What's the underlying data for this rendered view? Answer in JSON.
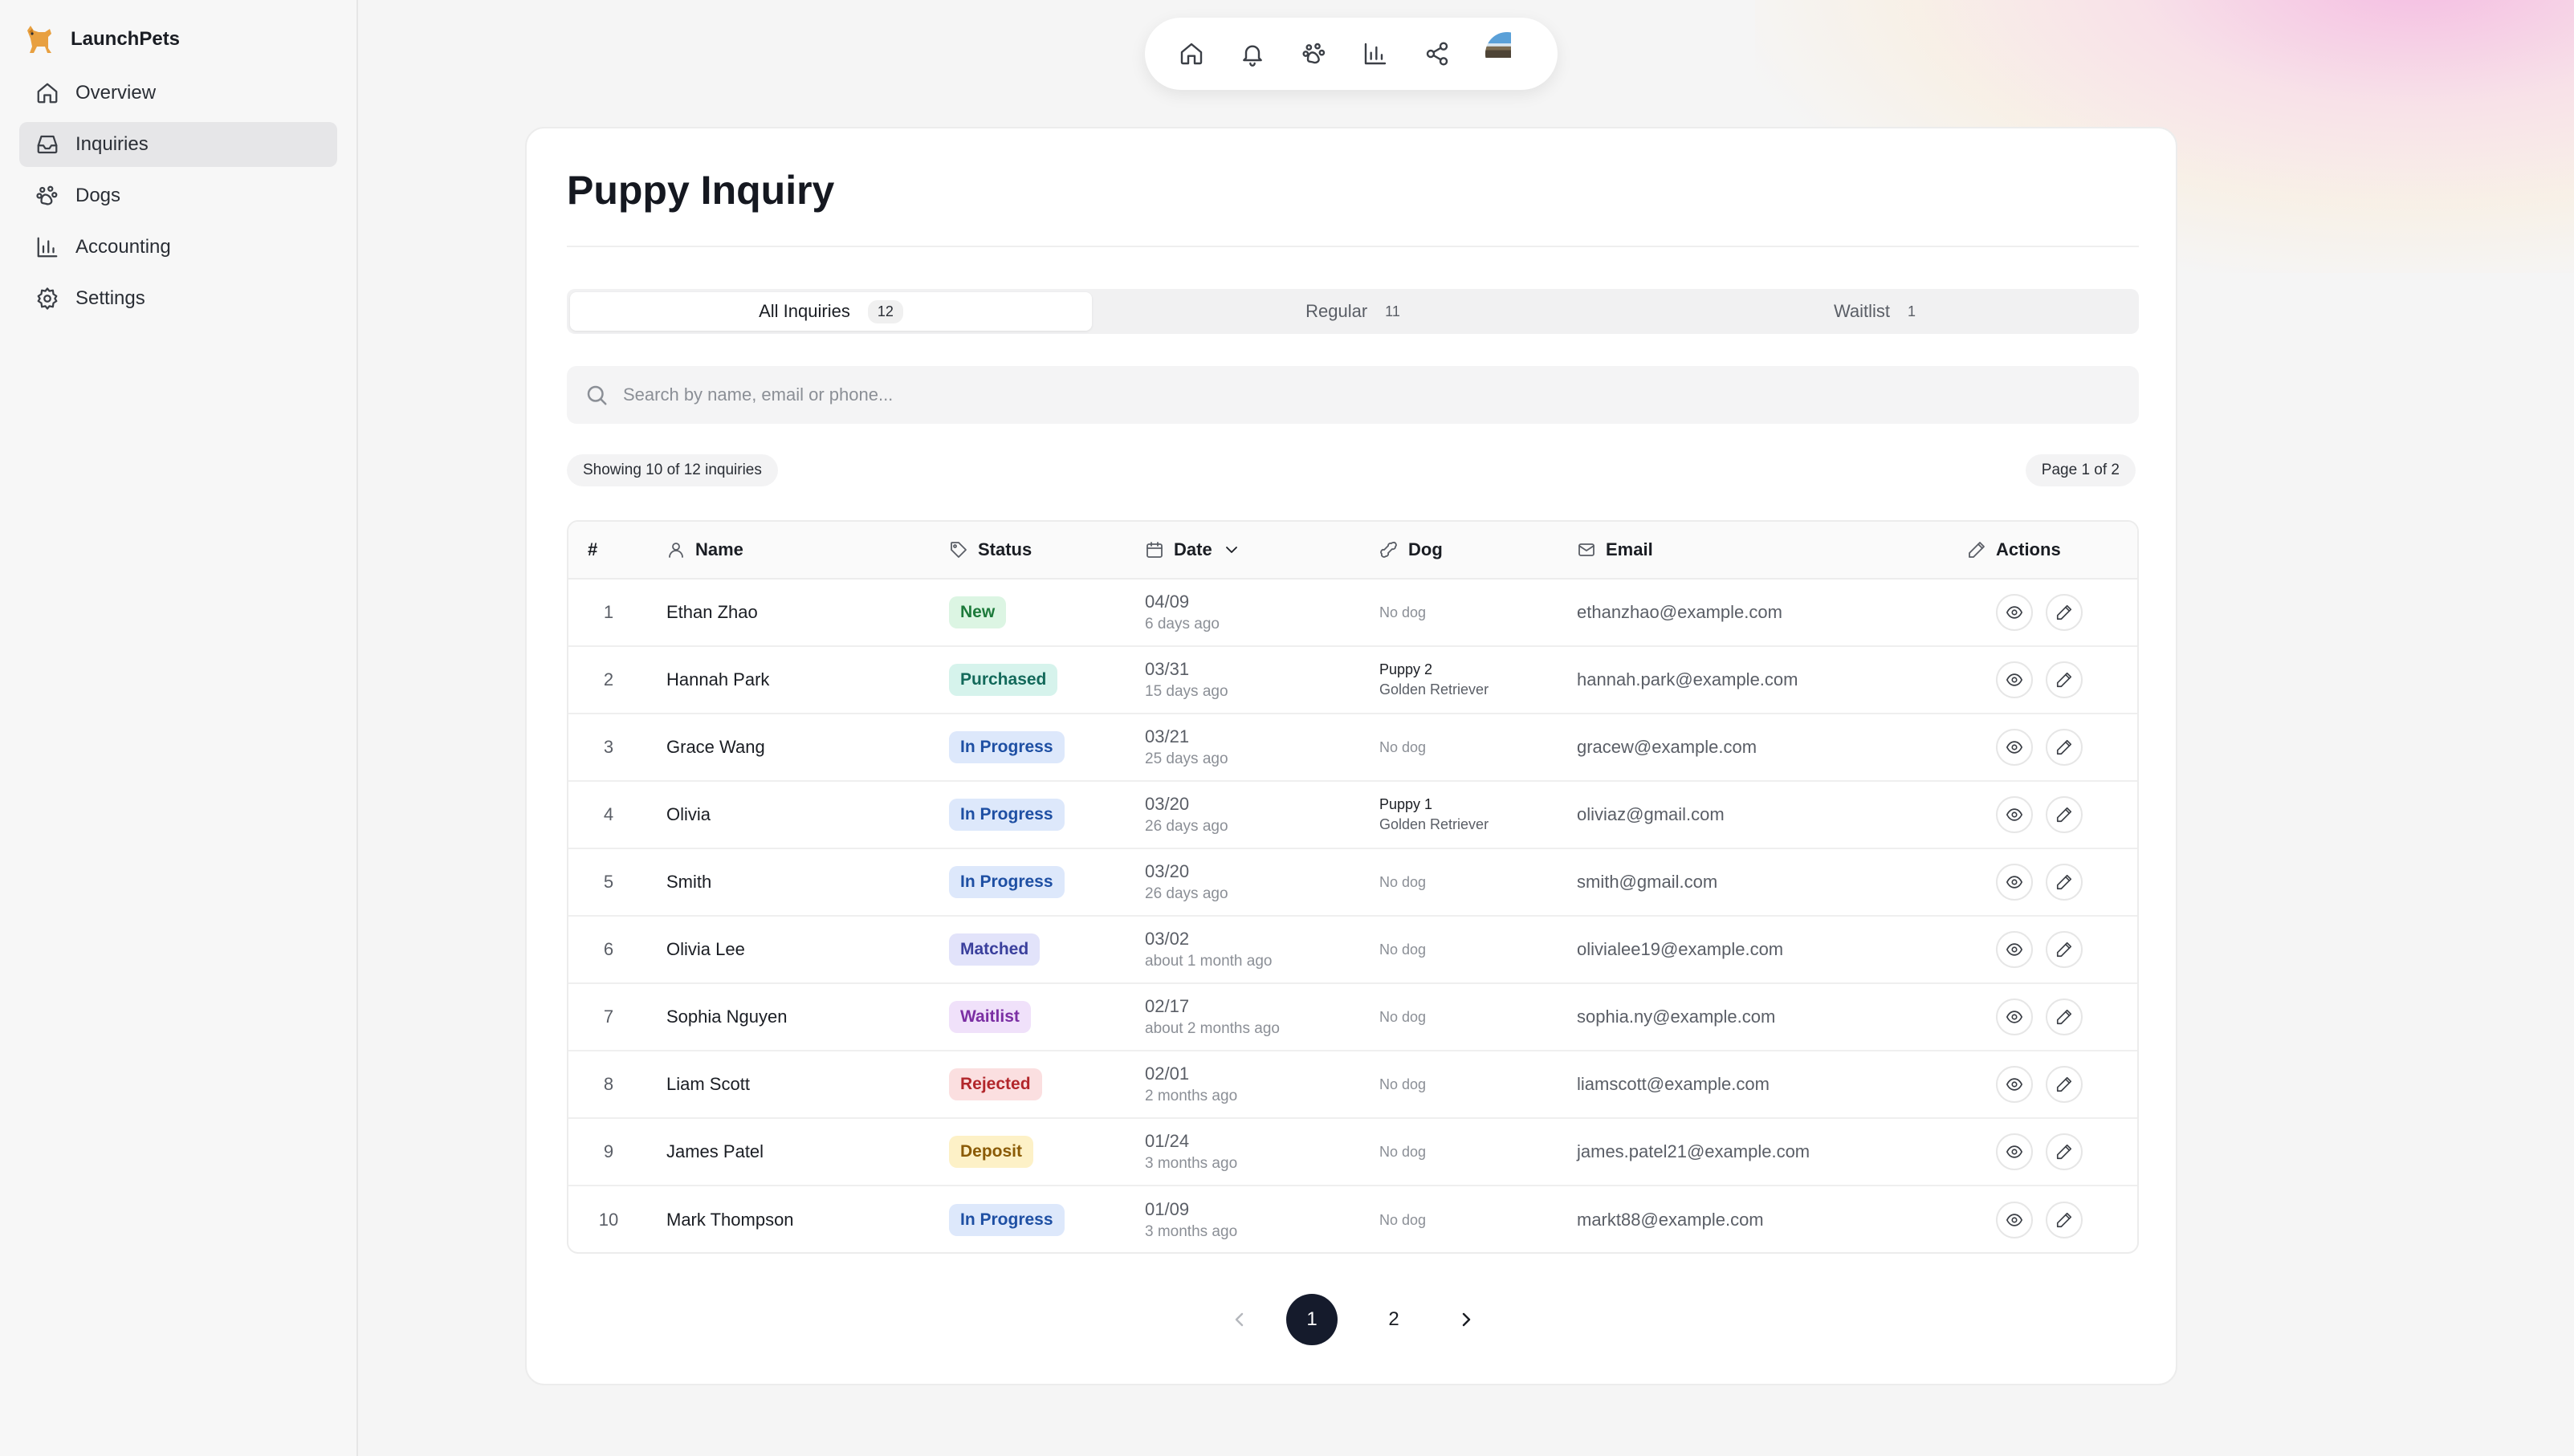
{
  "brand": {
    "name": "LaunchPets",
    "logo_icon": "dog-logo-icon",
    "accent": "#e8a040"
  },
  "sidebar": {
    "items": [
      {
        "label": "Overview",
        "icon": "home-icon",
        "active": false
      },
      {
        "label": "Inquiries",
        "icon": "inbox-icon",
        "active": true
      },
      {
        "label": "Dogs",
        "icon": "paw-icon",
        "active": false
      },
      {
        "label": "Accounting",
        "icon": "bar-chart-icon",
        "active": false
      },
      {
        "label": "Settings",
        "icon": "gear-icon",
        "active": false
      }
    ]
  },
  "topbar": {
    "icons": [
      "home-icon",
      "bell-icon",
      "paw-icon",
      "bar-chart-icon",
      "share-icon"
    ],
    "avatar": "user-avatar"
  },
  "main": {
    "title": "Puppy Inquiry",
    "tabs": [
      {
        "label": "All Inquiries",
        "count": "12",
        "active": true
      },
      {
        "label": "Regular",
        "count": "11",
        "active": false
      },
      {
        "label": "Waitlist",
        "count": "1",
        "active": false
      }
    ],
    "search": {
      "placeholder": "Search by name, email or phone...",
      "value": ""
    },
    "showing": "Showing 10 of 12 inquiries",
    "page_info": "Page 1 of 2"
  },
  "table": {
    "headers": {
      "num": "#",
      "name": "Name",
      "status": "Status",
      "date": "Date",
      "dog": "Dog",
      "email": "Email",
      "actions": "Actions"
    },
    "rows": [
      {
        "num": "1",
        "name": "Ethan Zhao",
        "status": "New",
        "status_class": "b-new",
        "date": "04/09",
        "ago": "6 days ago",
        "dog_none": "No dog",
        "email": "ethanzhao@example.com"
      },
      {
        "num": "2",
        "name": "Hannah Park",
        "status": "Purchased",
        "status_class": "b-purchased",
        "date": "03/31",
        "ago": "15 days ago",
        "dog_name": "Puppy 2",
        "dog_breed": "Golden Retriever",
        "email": "hannah.park@example.com"
      },
      {
        "num": "3",
        "name": "Grace Wang",
        "status": "In Progress",
        "status_class": "b-progress",
        "date": "03/21",
        "ago": "25 days ago",
        "dog_none": "No dog",
        "email": "gracew@example.com"
      },
      {
        "num": "4",
        "name": "Olivia",
        "status": "In Progress",
        "status_class": "b-progress",
        "date": "03/20",
        "ago": "26 days ago",
        "dog_name": "Puppy 1",
        "dog_breed": "Golden Retriever",
        "email": "oliviaz@gmail.com"
      },
      {
        "num": "5",
        "name": "Smith",
        "status": "In Progress",
        "status_class": "b-progress",
        "date": "03/20",
        "ago": "26 days ago",
        "dog_none": "No dog",
        "email": "smith@gmail.com"
      },
      {
        "num": "6",
        "name": "Olivia Lee",
        "status": "Matched",
        "status_class": "b-matched",
        "date": "03/02",
        "ago": "about 1 month ago",
        "dog_none": "No dog",
        "email": "olivialee19@example.com"
      },
      {
        "num": "7",
        "name": "Sophia Nguyen",
        "status": "Waitlist",
        "status_class": "b-waitlist",
        "date": "02/17",
        "ago": "about 2 months ago",
        "dog_none": "No dog",
        "email": "sophia.ny@example.com"
      },
      {
        "num": "8",
        "name": "Liam Scott",
        "status": "Rejected",
        "status_class": "b-rejected",
        "date": "02/01",
        "ago": "2 months ago",
        "dog_none": "No dog",
        "email": "liamscott@example.com"
      },
      {
        "num": "9",
        "name": "James Patel",
        "status": "Deposit",
        "status_class": "b-deposit",
        "date": "01/24",
        "ago": "3 months ago",
        "dog_none": "No dog",
        "email": "james.patel21@example.com"
      },
      {
        "num": "10",
        "name": "Mark Thompson",
        "status": "In Progress",
        "status_class": "b-progress",
        "date": "01/09",
        "ago": "3 months ago",
        "dog_none": "No dog",
        "email": "markt88@example.com"
      }
    ]
  },
  "pagination": {
    "pages": [
      "1",
      "2"
    ],
    "current": "1"
  },
  "colors": {
    "active_page": "#151b2c",
    "new": "#1d7a3b",
    "purchased": "#13695a",
    "in_progress": "#1e4fa3",
    "matched": "#3a3f9c",
    "waitlist": "#7b2fa3",
    "rejected": "#b2262b",
    "deposit": "#8a5a05"
  }
}
